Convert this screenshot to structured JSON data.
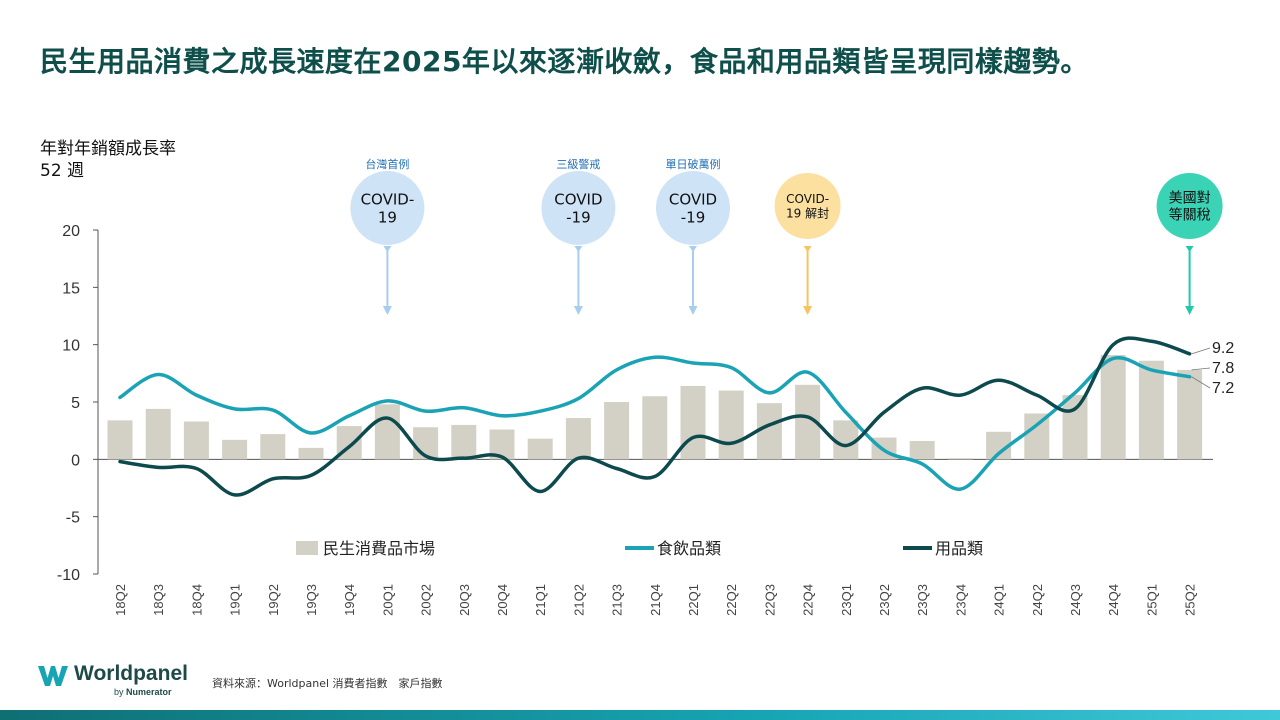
{
  "title": "民生用品消費之成長速度在2025年以來逐漸收斂，食品和用品類皆呈現同樣趨勢。",
  "y_unit_line1": "年對年銷額成長率",
  "y_unit_line2": "52 週",
  "source": "資料來源：Worldpanel 消費者指數　家戶指數",
  "brand": {
    "name": "Worldpanel",
    "by_prefix": "by",
    "by_name": "Numerator"
  },
  "colors": {
    "bar": "#d3d1c6",
    "food": "#1aa3b5",
    "goods": "#0d4a4e",
    "covid": "#cfe3f7",
    "reopen": "#fbe0a0",
    "tariff": "#3bd3b5"
  },
  "annotations": [
    {
      "quarter": "20Q1",
      "label": "台灣首例",
      "bubble": "COVID-\n19",
      "style": "covid"
    },
    {
      "quarter": "21Q2",
      "label": "三級警戒",
      "bubble": "COVID\n-19",
      "style": "covid"
    },
    {
      "quarter": "22Q1",
      "label": "單日破萬例",
      "bubble": "COVID\n-19",
      "style": "covid"
    },
    {
      "quarter": "22Q4",
      "label": "",
      "bubble": "COVID-\n19 解封",
      "style": "reopen"
    },
    {
      "quarter": "25Q2",
      "label": "",
      "bubble": "美國對\n等關稅",
      "style": "tariff"
    }
  ],
  "chart_data": {
    "type": "bar+line",
    "title": "民生用品消費之成長速度在2025年以來逐漸收斂，食品和用品類皆呈現同樣趨勢。",
    "ylabel": "年對年銷額成長率 52 週",
    "ylim": [
      -10,
      20
    ],
    "yticks": [
      20,
      15,
      10,
      5,
      0,
      -5,
      -10
    ],
    "legend_position": "bottom",
    "categories": [
      "18Q2",
      "18Q3",
      "18Q4",
      "19Q1",
      "19Q2",
      "19Q3",
      "19Q4",
      "20Q1",
      "20Q2",
      "20Q3",
      "20Q4",
      "21Q1",
      "21Q2",
      "21Q3",
      "21Q4",
      "22Q1",
      "22Q2",
      "22Q3",
      "22Q4",
      "23Q1",
      "23Q2",
      "23Q3",
      "23Q4",
      "24Q1",
      "24Q2",
      "24Q3",
      "24Q4",
      "25Q1",
      "25Q2"
    ],
    "series": [
      {
        "name": "民生消費品市場",
        "type": "bar",
        "values": [
          3.4,
          4.4,
          3.3,
          1.7,
          2.2,
          1.0,
          2.9,
          4.8,
          2.8,
          3.0,
          2.6,
          1.8,
          3.6,
          5.0,
          5.5,
          6.4,
          6.0,
          4.9,
          6.5,
          3.4,
          1.9,
          1.6,
          0.1,
          2.4,
          4.0,
          5.6,
          9.1,
          8.6,
          7.8
        ]
      },
      {
        "name": "食飲品類",
        "type": "line",
        "values": [
          5.4,
          7.4,
          5.6,
          4.4,
          4.3,
          2.3,
          3.8,
          5.1,
          4.2,
          4.5,
          3.8,
          4.2,
          5.3,
          7.8,
          8.9,
          8.4,
          8.0,
          5.8,
          7.6,
          4.1,
          0.8,
          -0.4,
          -2.6,
          0.5,
          3.0,
          5.8,
          8.8,
          7.8,
          7.2
        ]
      },
      {
        "name": "用品類",
        "type": "line",
        "values": [
          -0.2,
          -0.7,
          -0.8,
          -3.1,
          -1.7,
          -1.4,
          1.1,
          3.6,
          0.3,
          0.1,
          0.2,
          -2.8,
          0.1,
          -0.8,
          -1.5,
          1.9,
          1.4,
          3.0,
          3.7,
          1.2,
          4.1,
          6.2,
          5.6,
          6.9,
          5.6,
          4.4,
          10.0,
          10.3,
          9.2
        ]
      }
    ],
    "end_labels": [
      "9.2",
      "7.8",
      "7.2"
    ]
  }
}
